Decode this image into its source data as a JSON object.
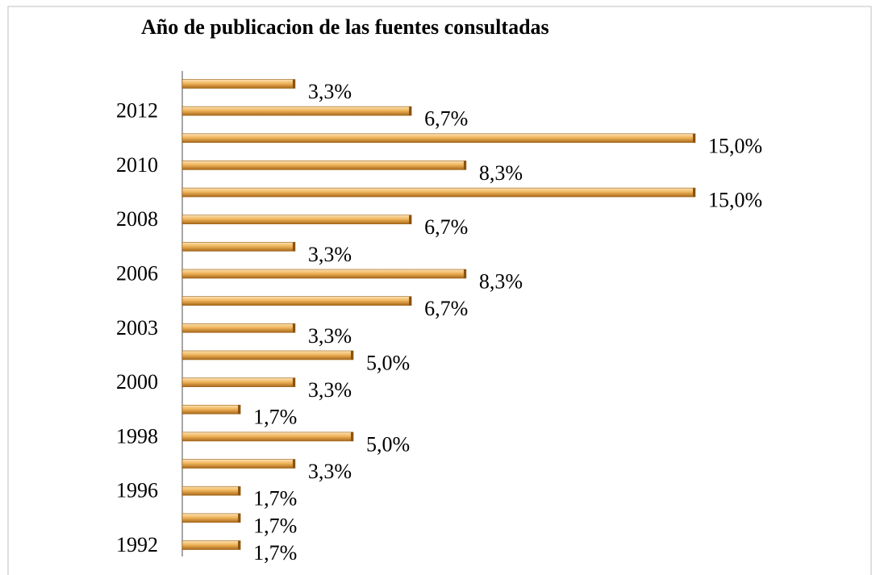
{
  "chart_data": {
    "type": "bar",
    "orientation": "horizontal",
    "title": "Año de publicacion de las fuentes consultadas",
    "categories": [
      null,
      "2012",
      null,
      "2010",
      null,
      "2008",
      null,
      "2006",
      null,
      "2003",
      null,
      "2000",
      null,
      "1998",
      null,
      "1996",
      null,
      "1992"
    ],
    "values": [
      3.3,
      6.7,
      15.0,
      8.3,
      15.0,
      6.7,
      3.3,
      8.3,
      6.7,
      3.3,
      5.0,
      3.3,
      1.7,
      5.0,
      3.3,
      1.7,
      1.7,
      1.7
    ],
    "value_labels": [
      "3,3%",
      "6,7%",
      "15,0%",
      "8,3%",
      "15,0%",
      "6,7%",
      "3,3%",
      "8,3%",
      "6,7%",
      "3,3%",
      "5,0%",
      "3,3%",
      "1,7%",
      "5,0%",
      "3,3%",
      "1,7%",
      "1,7%",
      "1,7%"
    ],
    "color": "#e8a23a"
  }
}
